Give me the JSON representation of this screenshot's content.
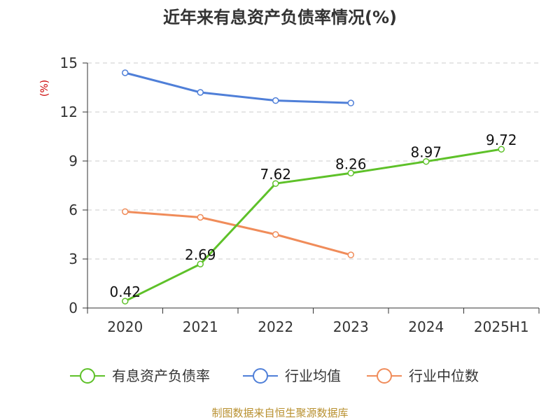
{
  "chart_data": {
    "type": "line",
    "title": "近年来有息资产负债率情况(%)",
    "ylabel": "(%)",
    "categories": [
      "2020",
      "2021",
      "2022",
      "2023",
      "2024",
      "2025H1"
    ],
    "ylim": [
      0,
      15
    ],
    "yticks": [
      0,
      3,
      6,
      9,
      12,
      15
    ],
    "grid": true,
    "legend_position": "bottom",
    "series": [
      {
        "name": "有息资产负债率",
        "color": "#5ec129",
        "values": [
          0.42,
          2.69,
          7.62,
          8.26,
          8.97,
          9.72
        ],
        "labels": [
          "0.42",
          "2.69",
          "7.62",
          "8.26",
          "8.97",
          "9.72"
        ]
      },
      {
        "name": "行业均值",
        "color": "#4f7fd8",
        "values": [
          14.4,
          13.2,
          12.7,
          12.55,
          null,
          null
        ]
      },
      {
        "name": "行业中位数",
        "color": "#f08c5a",
        "values": [
          5.9,
          5.55,
          4.5,
          3.25,
          null,
          null
        ]
      }
    ]
  },
  "source": "制图数据来自恒生聚源数据库"
}
